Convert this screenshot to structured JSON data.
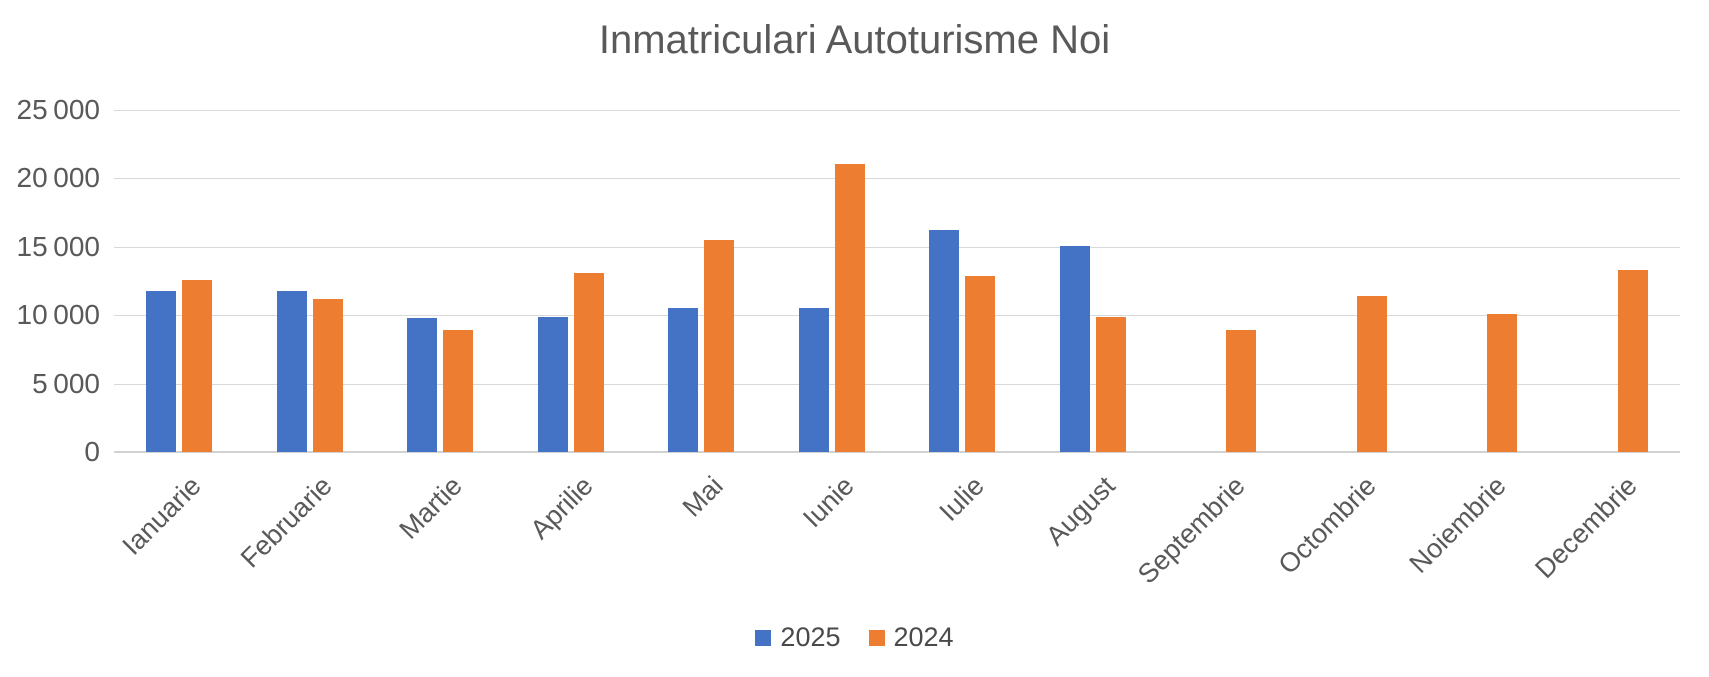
{
  "chart_data": {
    "type": "bar",
    "title": "Inmatriculari Autoturisme Noi",
    "categories": [
      "Ianuarie",
      "Februarie",
      "Martie",
      "Aprilie",
      "Mai",
      "Iunie",
      "Iulie",
      "August",
      "Septembrie",
      "Octombrie",
      "Noiembrie",
      "Decembrie"
    ],
    "series": [
      {
        "name": "2025",
        "color": "#4472C4",
        "values": [
          11800,
          11800,
          9800,
          9900,
          10500,
          10500,
          16200,
          15050,
          null,
          null,
          null,
          null
        ]
      },
      {
        "name": "2024",
        "color": "#ED7D31",
        "values": [
          12550,
          11150,
          8950,
          13050,
          15500,
          21050,
          12900,
          9900,
          8900,
          11400,
          10100,
          13300
        ]
      }
    ],
    "xlabel": "",
    "ylabel": "",
    "ylim": [
      0,
      25000
    ],
    "ytick_step": 5000,
    "ytick_values": [
      0,
      5000,
      10000,
      15000,
      20000,
      25000
    ],
    "ytick_labels": [
      "0",
      "5 000",
      "10 000",
      "15 000",
      "20 000",
      "25 000"
    ],
    "grid": true,
    "legend_position": "bottom",
    "gridline_color": "#D9D9D9",
    "axis_text_color": "#595959"
  }
}
